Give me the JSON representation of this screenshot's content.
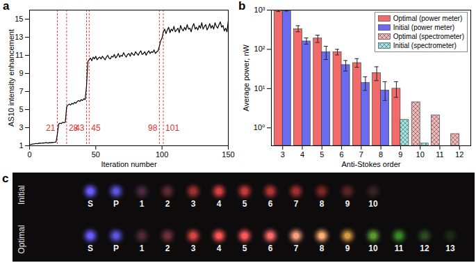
{
  "chart_data": [
    {
      "type": "line",
      "title": "a",
      "xlabel": "Iteration number",
      "ylabel": "AS10 intensity enhancement",
      "x": [
        0,
        1,
        2,
        3,
        4,
        5,
        6,
        7,
        8,
        9,
        10,
        11,
        12,
        13,
        14,
        15,
        16,
        17,
        18,
        19,
        20,
        21,
        22,
        23,
        24,
        25,
        26,
        27,
        28,
        29,
        30,
        31,
        32,
        33,
        34,
        35,
        36,
        37,
        38,
        39,
        40,
        41,
        42,
        43,
        44,
        45,
        46,
        47,
        48,
        49,
        50,
        51,
        52,
        53,
        54,
        55,
        56,
        57,
        58,
        59,
        60,
        61,
        62,
        63,
        64,
        65,
        66,
        67,
        68,
        69,
        70,
        71,
        72,
        73,
        74,
        75,
        76,
        77,
        78,
        79,
        80,
        81,
        82,
        83,
        84,
        85,
        86,
        87,
        88,
        89,
        90,
        91,
        92,
        93,
        94,
        95,
        96,
        97,
        98,
        99,
        100,
        101,
        102,
        103,
        104,
        105,
        106,
        107,
        108,
        109,
        110,
        111,
        112,
        113,
        114,
        115,
        116,
        117,
        118,
        119,
        120,
        121,
        122,
        123,
        124,
        125,
        126,
        127,
        128,
        129,
        130,
        131,
        132,
        133,
        134,
        135,
        136,
        137,
        138,
        139,
        140,
        141,
        142,
        143,
        144,
        145,
        146,
        147,
        148,
        149,
        150
      ],
      "values": [
        1.1,
        1.15,
        1.18,
        1.2,
        1.22,
        1.25,
        1.22,
        1.28,
        1.3,
        1.27,
        1.32,
        1.3,
        1.35,
        1.33,
        1.3,
        1.36,
        1.34,
        1.38,
        1.35,
        1.4,
        1.42,
        2.3,
        3.4,
        3.5,
        3.45,
        3.6,
        3.55,
        3.6,
        5.3,
        5.5,
        5.6,
        5.5,
        5.7,
        5.6,
        5.8,
        5.7,
        5.9,
        6.0,
        5.9,
        6.1,
        6.0,
        6.2,
        6.1,
        7.6,
        10.3,
        10.5,
        10.7,
        10.4,
        10.8,
        10.6,
        10.9,
        10.5,
        10.7,
        10.8,
        10.6,
        10.9,
        10.7,
        10.5,
        10.8,
        11.0,
        10.7,
        10.6,
        10.9,
        10.8,
        11.1,
        10.7,
        10.9,
        11.2,
        10.8,
        11.0,
        10.9,
        11.3,
        11.0,
        10.8,
        11.1,
        11.2,
        10.9,
        11.3,
        11.1,
        11.0,
        11.4,
        11.2,
        11.0,
        11.3,
        11.5,
        11.1,
        11.2,
        11.4,
        11.0,
        11.3,
        11.5,
        11.2,
        11.4,
        11.3,
        11.6,
        11.2,
        11.4,
        11.5,
        12.0,
        12.6,
        12.9,
        13.6,
        13.9,
        13.4,
        13.8,
        14.1,
        13.5,
        13.9,
        13.7,
        14.2,
        13.6,
        13.8,
        14.0,
        13.5,
        14.3,
        13.9,
        13.7,
        14.1,
        13.8,
        14.4,
        13.9,
        14.0,
        13.6,
        14.2,
        14.5,
        13.9,
        14.1,
        13.8,
        14.3,
        14.0,
        14.6,
        13.9,
        14.2,
        14.4,
        13.8,
        14.1,
        14.5,
        14.0,
        14.3,
        13.9,
        14.6,
        14.2,
        14.0,
        14.4,
        14.7,
        14.1,
        14.3,
        13.7,
        14.0,
        13.6,
        14.8
      ],
      "color": "#000000",
      "xlim": [
        0,
        150
      ],
      "xticks": [
        0,
        50,
        100,
        150
      ],
      "ylim": [
        1,
        16
      ],
      "yticks": [
        1,
        3,
        5,
        7,
        9,
        11,
        13,
        15
      ],
      "annotations": {
        "x": [
          21,
          28,
          43,
          45,
          98,
          101
        ],
        "color": "#e8302e",
        "line_style": "dashed"
      }
    },
    {
      "type": "bar",
      "title": "b",
      "xlabel": "Anti-Stokes order",
      "ylabel": "Average power, nW",
      "categories": [
        3,
        4,
        5,
        6,
        7,
        8,
        9,
        10,
        11,
        12
      ],
      "log": "y",
      "legend": "top-right",
      "ylim": [
        0.35,
        1000
      ],
      "yticks": [
        {
          "value": 1,
          "label": "10⁰"
        },
        {
          "value": 10,
          "label": "10¹"
        },
        {
          "value": 100,
          "label": "10²"
        },
        {
          "value": 1000,
          "label": "10³"
        }
      ],
      "series": [
        {
          "name": "Optimal (power meter)",
          "type": "bar",
          "color": "#f26b6b",
          "values": [
            1000,
            330,
            190,
            85,
            45,
            25,
            10,
            null,
            null,
            null
          ],
          "errors": [
            [
              920,
              1000
            ],
            [
              280,
              400
            ],
            [
              150,
              230
            ],
            [
              72,
              100
            ],
            [
              35,
              58
            ],
            [
              16,
              36
            ],
            [
              6,
              15
            ],
            null,
            null,
            null
          ]
        },
        {
          "name": "Initial (power meter)",
          "type": "bar",
          "color": "#6b6bf0",
          "values": [
            1000,
            160,
            85,
            40,
            14,
            9,
            null,
            null,
            null,
            null
          ],
          "errors": [
            [
              940,
              1000
            ],
            [
              135,
              195
            ],
            [
              55,
              120
            ],
            [
              28,
              52
            ],
            [
              9,
              20
            ],
            [
              5,
              15
            ],
            null,
            null,
            null,
            null
          ]
        },
        {
          "name": "Optimal (spectrometer)",
          "type": "hatched",
          "color": "#f4b8b8",
          "values": [
            null,
            null,
            null,
            null,
            null,
            null,
            null,
            4.5,
            2.1,
            0.7
          ]
        },
        {
          "name": "Initial (spectrometer)",
          "type": "hatched",
          "color": "#9fe8e8",
          "values": [
            null,
            null,
            null,
            null,
            null,
            null,
            1.6,
            0.4,
            null,
            null
          ]
        }
      ]
    },
    {
      "type": "image",
      "title": "c",
      "rows": [
        {
          "name": "Initial",
          "categories": [
            "S",
            "P",
            "1",
            "2",
            "3",
            "4",
            "5",
            "6",
            "7",
            "8",
            "9",
            "10"
          ],
          "colors": [
            "#6a5cff",
            "#5a55dd",
            "#4a2a40",
            "#5a2a30",
            "#a03030",
            "#d84040",
            "#c83a3a",
            "#b53535",
            "#a03030",
            "#7a2828",
            "#5a2525",
            "#3a2020"
          ]
        },
        {
          "name": "Optimal",
          "categories": [
            "S",
            "P",
            "1",
            "2",
            "3",
            "4",
            "5",
            "6",
            "7",
            "8",
            "9",
            "10",
            "11",
            "12",
            "13"
          ],
          "colors": [
            "#6a5cff",
            "#5a55dd",
            "#502a35",
            "#70303a",
            "#d84545",
            "#ff5555",
            "#ff5a5a",
            "#ff6a6a",
            "#ffa080",
            "#ffb070",
            "#d89a40",
            "#5a9a30",
            "#3a8a28",
            "#2a4a20",
            "#1a2a18"
          ]
        }
      ]
    }
  ]
}
